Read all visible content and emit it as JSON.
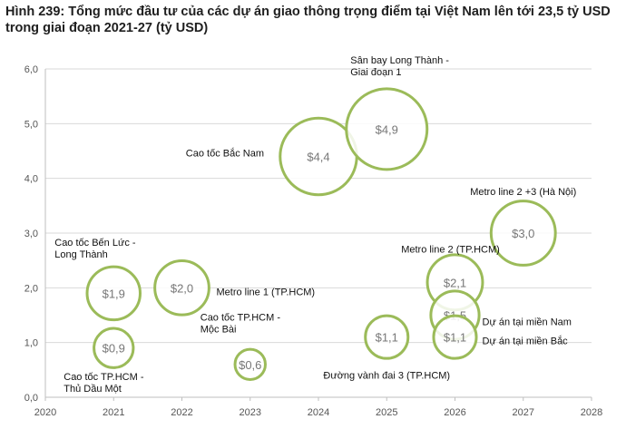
{
  "title": "Hình 239: Tổng mức đầu tư của các dự án giao thông trọng điểm tại Việt Nam lên tới 23,5 tỷ USD trong giai đoạn 2021-27 (tỷ USD)",
  "colors": {
    "bubble_stroke": "#9bbb59",
    "bubble_fill": "#ffffff",
    "axis": "#bfbfbf",
    "grid": "#d9d9d9"
  },
  "chart_data": {
    "type": "scatter",
    "title": "Hình 239: Tổng mức đầu tư của các dự án giao thông trọng điểm tại Việt Nam lên tới 23,5 tỷ USD trong giai đoạn 2021-27 (tỷ USD)",
    "xlabel": "",
    "ylabel": "",
    "xlim": [
      2020,
      2028
    ],
    "ylim": [
      0,
      6
    ],
    "x_ticks": [
      "2020",
      "2021",
      "2022",
      "2023",
      "2024",
      "2025",
      "2026",
      "2027",
      "2028"
    ],
    "y_ticks": [
      "0,0",
      "1,0",
      "2,0",
      "3,0",
      "4,0",
      "5,0",
      "6,0"
    ],
    "grid": "y-major",
    "points": [
      {
        "x": 2021,
        "y": 1.9,
        "value": 1.9,
        "label": "$1,9",
        "name": [
          "Cao tốc Bến Lức -",
          "Long Thành"
        ],
        "name_pos": "top"
      },
      {
        "x": 2021,
        "y": 0.9,
        "value": 0.9,
        "label": "$0,9",
        "name": [
          "Cao tốc TP.HCM -",
          "Thủ Dầu Một"
        ],
        "name_pos": "bottom"
      },
      {
        "x": 2022,
        "y": 2.0,
        "value": 2.0,
        "label": "$2,0",
        "name": [
          "Metro line 1 (TP.HCM)"
        ],
        "name_pos": "right"
      },
      {
        "x": 2023,
        "y": 0.6,
        "value": 0.6,
        "label": "$0,6",
        "name": [
          "Cao tốc TP.HCM -",
          "Mộc Bài"
        ],
        "name_pos": "top"
      },
      {
        "x": 2024,
        "y": 4.4,
        "value": 4.4,
        "label": "$4,4",
        "name": [
          "Cao tốc Bắc Nam"
        ],
        "name_pos": "left"
      },
      {
        "x": 2025,
        "y": 4.9,
        "value": 4.9,
        "label": "$4,9",
        "name": [
          "Sân bay Long Thành -",
          "Giai đoạn 1"
        ],
        "name_pos": "top"
      },
      {
        "x": 2025,
        "y": 1.1,
        "value": 1.1,
        "label": "$1,1",
        "name": [
          "Đường vành đai 3 (TP.HCM)"
        ],
        "name_pos": "bottom"
      },
      {
        "x": 2026,
        "y": 2.1,
        "value": 2.1,
        "label": "$2,1",
        "name": [
          "Metro line 2 (TP.HCM)"
        ],
        "name_pos": "top"
      },
      {
        "x": 2026,
        "y": 1.5,
        "value": 1.5,
        "label": "$1,5",
        "name": [
          "Dự án tại miền Nam"
        ],
        "name_pos": "right"
      },
      {
        "x": 2026,
        "y": 1.1,
        "value": 1.1,
        "label": "$1,1",
        "name": [
          "Dự án tại miền Bắc"
        ],
        "name_pos": "right"
      },
      {
        "x": 2027,
        "y": 3.0,
        "value": 3.0,
        "label": "$3,0",
        "name": [
          "Metro line 2 +3 (Hà Nội)"
        ],
        "name_pos": "top"
      }
    ]
  }
}
